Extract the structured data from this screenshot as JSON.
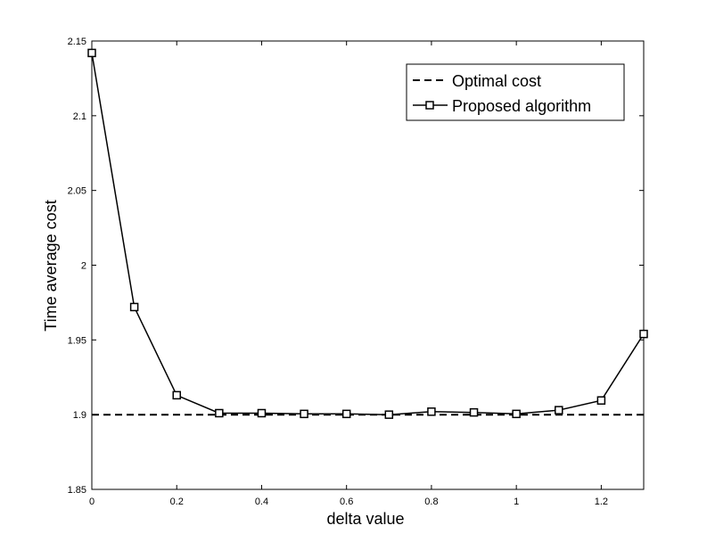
{
  "chart_data": {
    "type": "line",
    "xlabel": "delta value",
    "ylabel": "Time average cost",
    "xlim": [
      0,
      1.3
    ],
    "ylim": [
      1.85,
      2.15
    ],
    "xticks": [
      "0",
      "0.2",
      "0.4",
      "0.6",
      "0.8",
      "1",
      "1.2"
    ],
    "yticks": [
      "1.85",
      "1.9",
      "1.95",
      "2",
      "2.05",
      "2.1",
      "2.15"
    ],
    "grid": false,
    "legend_position": "top-right",
    "series": [
      {
        "name": "Optimal cost",
        "style": "dashed",
        "marker": "none",
        "color": "#000000",
        "x": [
          0,
          1.3
        ],
        "y": [
          1.9,
          1.9
        ]
      },
      {
        "name": "Proposed algorithm",
        "style": "solid",
        "marker": "square",
        "color": "#000000",
        "x": [
          0,
          0.1,
          0.2,
          0.3,
          0.4,
          0.5,
          0.6,
          0.7,
          0.8,
          0.9,
          1.0,
          1.1,
          1.2,
          1.3
        ],
        "y": [
          2.142,
          1.972,
          1.913,
          1.901,
          1.901,
          1.9005,
          1.9005,
          1.9,
          1.902,
          1.9015,
          1.9005,
          1.903,
          1.9095,
          1.954
        ]
      }
    ]
  }
}
